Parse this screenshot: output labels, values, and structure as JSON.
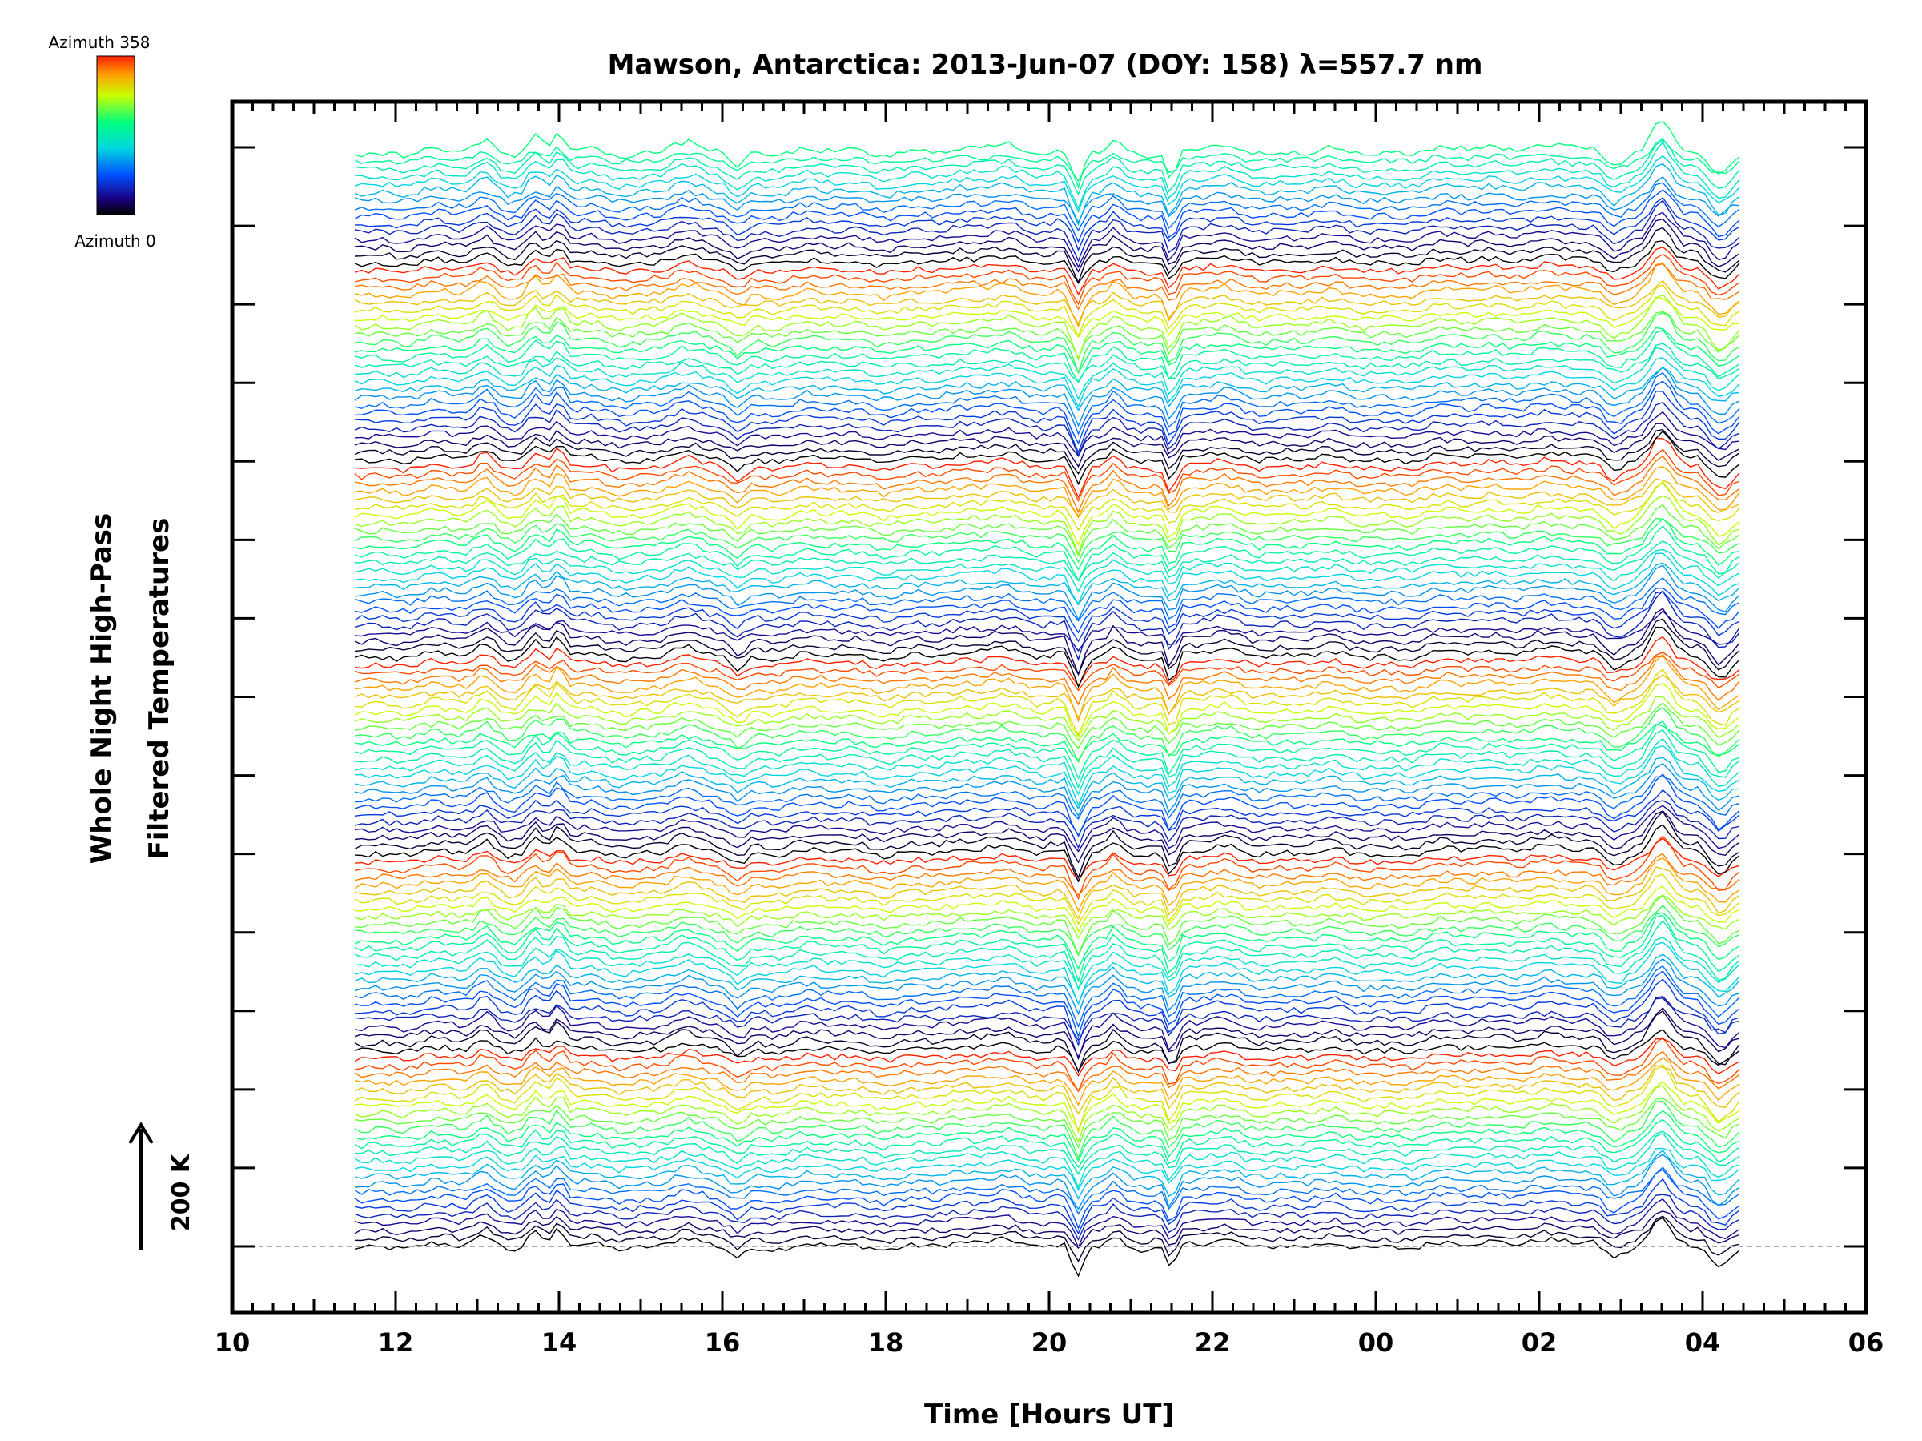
{
  "chart_data": {
    "type": "line",
    "title": "Mawson, Antarctica: 2013-Jun-07 (DOY: 158) λ=557.7 nm",
    "xlabel": "Time [Hours UT]",
    "ylabel_line1": "Whole Night High-Pass",
    "ylabel_line2": "Filtered Temperatures",
    "x_range_hours": [
      10,
      30
    ],
    "x_data_range_hours": [
      11.5,
      28.45
    ],
    "x_tick_labels": [
      "10",
      "12",
      "14",
      "16",
      "18",
      "20",
      "22",
      "00",
      "02",
      "04",
      "06"
    ],
    "y_tick_count": 15,
    "scale_bar_label": "200 K",
    "colorbar": {
      "top_label": "Azimuth  358",
      "bottom_label": "Azimuth  0",
      "min": 0,
      "max": 358
    },
    "stacked_series_count": 140,
    "azimuth_cycle_length": 25,
    "colors": {
      "baseline": "#a8a8a8",
      "azimuth_0": "#000000",
      "azimuth_mid": "#00ff80",
      "azimuth_358": "#ff2000"
    }
  }
}
